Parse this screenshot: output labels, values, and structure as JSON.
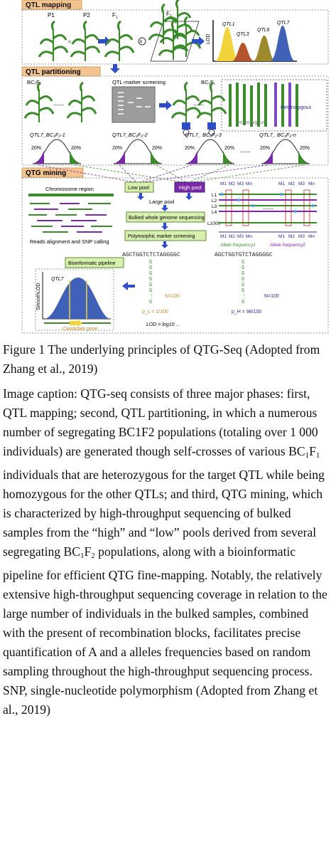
{
  "figure": {
    "sections": {
      "mapping": "QTL mapping",
      "partitioning": "QTL partitioning",
      "mining": "QTG mining"
    },
    "mapping": {
      "parents": [
        "P1",
        "P2"
      ],
      "f1_base": "F",
      "f1_sub": "1",
      "f2_base": "F",
      "f2_sub": "2",
      "lod_axis": "LOD",
      "qtl_labels": [
        "QTL1",
        "QTL3",
        "QTL6",
        "QTL7"
      ],
      "qtl_colors": [
        "#f1d33c",
        "#b5532a",
        "#9c8a2c",
        "#3f62b8"
      ]
    },
    "partitioning": {
      "bc_left": "BC₁F₁",
      "screening": "QTL-marker screening",
      "bc_right": "BC₁F₁",
      "heterozygous": "Heterozygous",
      "homozygous": "homozygous",
      "dots": "......",
      "populations": [
        "QTL7_BC₁F₂-1",
        "QTL7_BC₁F₂-2",
        "QTL7_ BC₁F₂-3",
        "QTL7_ BC₁F₂-n"
      ],
      "tail_pct": "20%"
    },
    "mining": {
      "chromosome_region": "Chromosome region",
      "reads_alignment": "Reads alignment and SNP calling",
      "low_pool": "Low pool",
      "high_pool": "High pool",
      "large_pool": "Large pool",
      "bulked": "Bulked whole genome sequencing",
      "polymorphic": "Polymorphic marker screening",
      "marker_headers": [
        "M1",
        "M2",
        "M3",
        "Mn",
        "M1",
        "M2",
        "M3",
        "Mn"
      ],
      "lines": [
        "L1",
        "L2",
        "L3",
        "L4",
        "L1000"
      ],
      "allele_freq1": "Allele frequency1",
      "allele_freq2": "Allele frequency2",
      "bioinformatic": "Bioinformatic pipeline",
      "smooth_lod": "SmoothLOD",
      "qtl7": "QTL7",
      "candidate_gene": "Candidate gene",
      "seq_left": "AGCTGGTCTCTAGGGGC",
      "seq_right": "AGCTGGTGTCTAGGGGC",
      "n_left": "N=100",
      "n_right": "N=100",
      "pl_eq": "p_L = 1/100",
      "ph_eq": "p_H = 98/100",
      "lod_formula": "LOD = log10 ..."
    }
  },
  "caption": {
    "title": "Figure 1 The underlying principles of QTG-Seq (Adopted from Zhang et al., 2019)",
    "body_1": "Image caption: QTG-seq consists of three major phases: first, QTL mapping; second, QTL partitioning, in which a numerous number of segregating BC1F2 populations (totaling over 1 000 individuals) are generated though self-crosses of various BC",
    "sub_1": "1",
    "body_2": "F",
    "sub_2": "1",
    "body_3": " individuals that are heterozygous for the target QTL while being homozygous for the other QTLs; and third, QTG mining, which is characterized by high-throughput sequencing of bulked samples from the “high” and “low” pools derived from several segregating BC",
    "sub_3": "1",
    "body_4": "F",
    "sub_4": "2",
    "body_5": " populations, along with a bioinformatic pipeline for efficient QTG fine-mapping. Notably, the relatively extensive high-throughput sequencing coverage in relation to the large number of individuals in the bulked samples, combined with the present of recombination blocks, facilitates precise quantification of A and a alleles frequencies based on random sampling throughout the high-throughput sequencing process. SNP, single-nucleotide polymorphism (Adopted from Zhang et al., 2019)"
  }
}
